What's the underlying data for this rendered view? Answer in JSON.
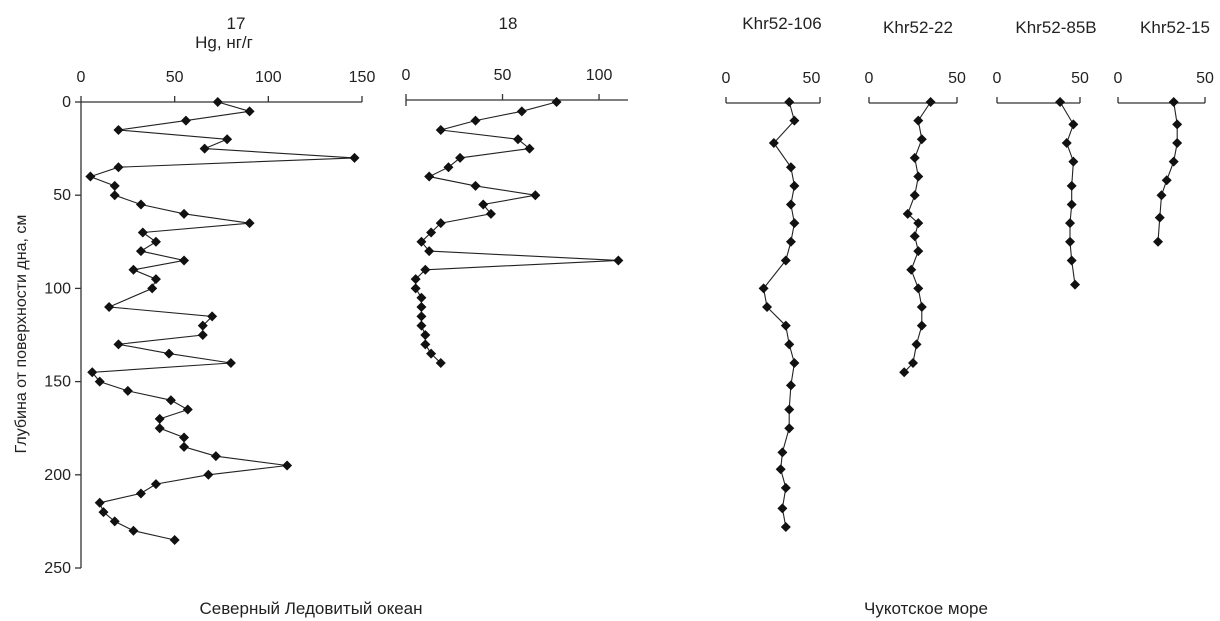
{
  "y_axis": {
    "label": "Глубина от поверхности дна, см",
    "ticks": [
      0,
      50,
      100,
      150,
      200,
      250
    ],
    "range": [
      0,
      250
    ]
  },
  "groups": [
    {
      "label": "Северный Ледовитый океан"
    },
    {
      "label": "Чукотское море"
    }
  ],
  "chart_data": [
    {
      "type": "line",
      "title": "17",
      "subtitle": "Hg, нг/г",
      "xlim": [
        0,
        150
      ],
      "x_ticks": [
        0,
        50,
        100,
        150
      ],
      "ylim": [
        0,
        250
      ],
      "points": [
        [
          73,
          0
        ],
        [
          90,
          5
        ],
        [
          56,
          10
        ],
        [
          20,
          15
        ],
        [
          78,
          20
        ],
        [
          66,
          25
        ],
        [
          146,
          30
        ],
        [
          20,
          35
        ],
        [
          5,
          40
        ],
        [
          18,
          45
        ],
        [
          18,
          50
        ],
        [
          32,
          55
        ],
        [
          55,
          60
        ],
        [
          90,
          65
        ],
        [
          33,
          70
        ],
        [
          40,
          75
        ],
        [
          32,
          80
        ],
        [
          55,
          85
        ],
        [
          28,
          90
        ],
        [
          40,
          95
        ],
        [
          38,
          100
        ],
        [
          15,
          110
        ],
        [
          70,
          115
        ],
        [
          65,
          120
        ],
        [
          65,
          125
        ],
        [
          20,
          130
        ],
        [
          47,
          135
        ],
        [
          80,
          140
        ],
        [
          6,
          145
        ],
        [
          10,
          150
        ],
        [
          25,
          155
        ],
        [
          48,
          160
        ],
        [
          57,
          165
        ],
        [
          42,
          170
        ],
        [
          42,
          175
        ],
        [
          55,
          180
        ],
        [
          55,
          185
        ],
        [
          72,
          190
        ],
        [
          110,
          195
        ],
        [
          68,
          200
        ],
        [
          40,
          205
        ],
        [
          32,
          210
        ],
        [
          10,
          215
        ],
        [
          12,
          220
        ],
        [
          18,
          225
        ],
        [
          28,
          230
        ],
        [
          50,
          235
        ]
      ]
    },
    {
      "type": "line",
      "title": "18",
      "xlim": [
        0,
        115
      ],
      "x_ticks": [
        0,
        50,
        100
      ],
      "ylim": [
        0,
        150
      ],
      "points": [
        [
          78,
          0
        ],
        [
          60,
          5
        ],
        [
          36,
          10
        ],
        [
          18,
          15
        ],
        [
          58,
          20
        ],
        [
          64,
          25
        ],
        [
          28,
          30
        ],
        [
          22,
          35
        ],
        [
          12,
          40
        ],
        [
          36,
          45
        ],
        [
          67,
          50
        ],
        [
          40,
          55
        ],
        [
          44,
          60
        ],
        [
          18,
          65
        ],
        [
          13,
          70
        ],
        [
          8,
          75
        ],
        [
          12,
          80
        ],
        [
          110,
          85
        ],
        [
          10,
          90
        ],
        [
          5,
          95
        ],
        [
          5,
          100
        ],
        [
          8,
          105
        ],
        [
          8,
          110
        ],
        [
          8,
          115
        ],
        [
          8,
          120
        ],
        [
          10,
          125
        ],
        [
          10,
          130
        ],
        [
          13,
          135
        ],
        [
          18,
          140
        ]
      ]
    },
    {
      "type": "line",
      "title": "Khr52-106",
      "xlim": [
        0,
        55
      ],
      "x_ticks": [
        0,
        50
      ],
      "ylim": [
        0,
        250
      ],
      "points": [
        [
          37,
          0
        ],
        [
          40,
          10
        ],
        [
          28,
          22
        ],
        [
          38,
          35
        ],
        [
          40,
          45
        ],
        [
          38,
          55
        ],
        [
          40,
          65
        ],
        [
          38,
          75
        ],
        [
          35,
          85
        ],
        [
          22,
          100
        ],
        [
          24,
          110
        ],
        [
          35,
          120
        ],
        [
          37,
          130
        ],
        [
          40,
          140
        ],
        [
          38,
          152
        ],
        [
          37,
          165
        ],
        [
          37,
          175
        ],
        [
          33,
          188
        ],
        [
          32,
          197
        ],
        [
          35,
          207
        ],
        [
          33,
          218
        ],
        [
          35,
          228
        ]
      ]
    },
    {
      "type": "line",
      "title": "Khr52-22",
      "xlim": [
        0,
        50
      ],
      "x_ticks": [
        0,
        50
      ],
      "ylim": [
        0,
        250
      ],
      "points": [
        [
          35,
          0
        ],
        [
          28,
          10
        ],
        [
          30,
          20
        ],
        [
          26,
          30
        ],
        [
          28,
          40
        ],
        [
          26,
          50
        ],
        [
          22,
          60
        ],
        [
          28,
          65
        ],
        [
          26,
          72
        ],
        [
          28,
          80
        ],
        [
          24,
          90
        ],
        [
          28,
          100
        ],
        [
          30,
          110
        ],
        [
          30,
          120
        ],
        [
          27,
          130
        ],
        [
          25,
          140
        ],
        [
          20,
          145
        ]
      ]
    },
    {
      "type": "line",
      "title": "Khr52-85B",
      "xlim": [
        0,
        50
      ],
      "x_ticks": [
        0,
        50
      ],
      "ylim": [
        0,
        250
      ],
      "points": [
        [
          38,
          0
        ],
        [
          46,
          12
        ],
        [
          42,
          22
        ],
        [
          46,
          32
        ],
        [
          45,
          45
        ],
        [
          45,
          55
        ],
        [
          44,
          65
        ],
        [
          44,
          75
        ],
        [
          45,
          85
        ],
        [
          47,
          98
        ]
      ]
    },
    {
      "type": "line",
      "title": "Khr52-15",
      "xlim": [
        0,
        50
      ],
      "x_ticks": [
        0,
        50
      ],
      "ylim": [
        0,
        250
      ],
      "points": [
        [
          32,
          0
        ],
        [
          34,
          12
        ],
        [
          34,
          22
        ],
        [
          32,
          32
        ],
        [
          28,
          42
        ],
        [
          25,
          50
        ],
        [
          24,
          62
        ],
        [
          23,
          75
        ]
      ]
    }
  ]
}
